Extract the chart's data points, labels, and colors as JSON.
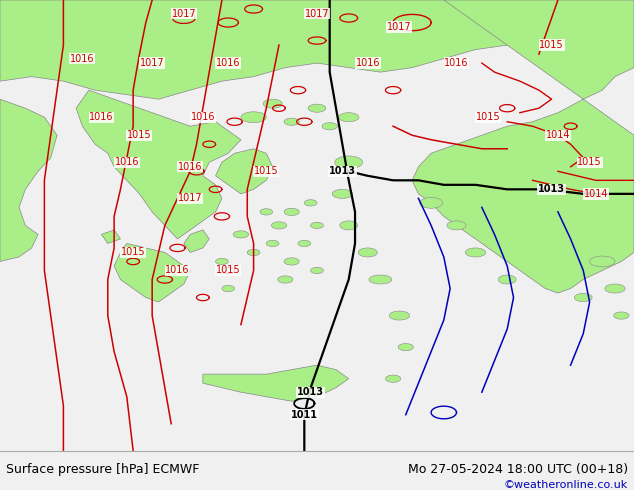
{
  "title_left": "Surface pressure [hPa] ECMWF",
  "title_right": "Mo 27-05-2024 18:00 UTC (00+18)",
  "copyright": "©weatheronline.co.uk",
  "sea_color": "#d8d8d8",
  "land_green_color": "#aaee88",
  "border_color": "#888888",
  "isobar_red_color": "#cc0000",
  "isobar_black_color": "#000000",
  "isobar_blue_color": "#0000bb",
  "label_fontsize": 7.0,
  "title_fontsize": 9,
  "copyright_fontsize": 8,
  "figsize": [
    6.34,
    4.9
  ],
  "dpi": 100
}
